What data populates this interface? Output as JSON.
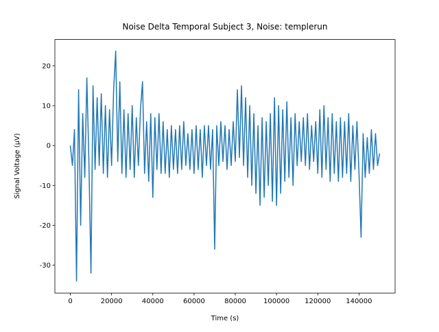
{
  "chart_data": {
    "type": "line",
    "title": "Noise Delta Temporal Subject 3, Noise: templerun",
    "xlabel": "Time (s)",
    "ylabel": "Signal Voltage (μV)",
    "x": [
      0,
      1000,
      2000,
      3000,
      4000,
      5000,
      6000,
      7000,
      8000,
      9000,
      10000,
      11000,
      12000,
      13000,
      14000,
      15000,
      16000,
      17000,
      18000,
      19000,
      20000,
      21000,
      22000,
      23000,
      24000,
      25000,
      26000,
      27000,
      28000,
      29000,
      30000,
      31000,
      32000,
      33000,
      34000,
      35000,
      36000,
      37000,
      38000,
      39000,
      40000,
      41000,
      42000,
      43000,
      44000,
      45000,
      46000,
      47000,
      48000,
      49000,
      50000,
      51000,
      52000,
      53000,
      54000,
      55000,
      56000,
      57000,
      58000,
      59000,
      60000,
      61000,
      62000,
      63000,
      64000,
      65000,
      66000,
      67000,
      68000,
      69000,
      70000,
      71000,
      72000,
      73000,
      74000,
      75000,
      76000,
      77000,
      78000,
      79000,
      80000,
      81000,
      82000,
      83000,
      84000,
      85000,
      86000,
      87000,
      88000,
      89000,
      90000,
      91000,
      92000,
      93000,
      94000,
      95000,
      96000,
      97000,
      98000,
      99000,
      100000,
      101000,
      102000,
      103000,
      104000,
      105000,
      106000,
      107000,
      108000,
      109000,
      110000,
      111000,
      112000,
      113000,
      114000,
      115000,
      116000,
      117000,
      118000,
      119000,
      120000,
      121000,
      122000,
      123000,
      124000,
      125000,
      126000,
      127000,
      128000,
      129000,
      130000,
      131000,
      132000,
      133000,
      134000,
      135000,
      136000,
      137000,
      138000,
      139000,
      140000,
      141000,
      142000,
      143000,
      144000,
      145000,
      146000,
      147000,
      148000,
      149000,
      150000
    ],
    "series": [
      {
        "color": "#1f77b4",
        "values": [
          0,
          -5,
          4,
          -34,
          14,
          -20,
          8,
          -8,
          17,
          -4,
          -32,
          15,
          -6,
          12,
          -5,
          13,
          -7,
          10,
          -8,
          9,
          -5,
          14,
          23.7,
          -4,
          16,
          -7,
          9,
          -8,
          8,
          -6,
          10,
          -8,
          7,
          -5,
          9,
          16,
          -7,
          6,
          -9,
          8,
          -13,
          7,
          -6,
          8,
          -7,
          6,
          -7,
          4,
          -8,
          5,
          -6,
          4,
          -7,
          5,
          -6,
          6,
          -5,
          3,
          -6,
          4,
          -7,
          5,
          -6,
          4,
          -8,
          5,
          -5,
          5,
          -6,
          4,
          -26,
          5,
          -5,
          6,
          -4,
          5,
          -6,
          4,
          -5,
          6,
          -4,
          14,
          -3,
          15,
          -5,
          12,
          -8,
          10,
          -10,
          8,
          -12,
          5,
          -15,
          7,
          -13,
          6,
          -10,
          8,
          -14,
          12,
          -15,
          10,
          -12,
          9,
          -9,
          11,
          -8,
          7,
          -10,
          8,
          -5,
          6,
          -4,
          7,
          -5,
          8,
          -6,
          5,
          -4,
          6,
          -7,
          9,
          -8,
          10,
          -6,
          7,
          -9,
          8,
          -7,
          6,
          -9,
          7,
          -8,
          6,
          -7,
          8,
          -9,
          5,
          -6,
          6,
          -7,
          -23,
          3,
          -8,
          2,
          -7,
          4,
          -6,
          3,
          -5,
          -2
        ]
      }
    ],
    "xlim": [
      -7500,
      157500
    ],
    "ylim": [
      -36.99,
      26.59
    ],
    "xticks": [
      0,
      20000,
      40000,
      60000,
      80000,
      100000,
      120000,
      140000
    ],
    "yticks": [
      -30,
      -20,
      -10,
      0,
      10,
      20
    ]
  }
}
